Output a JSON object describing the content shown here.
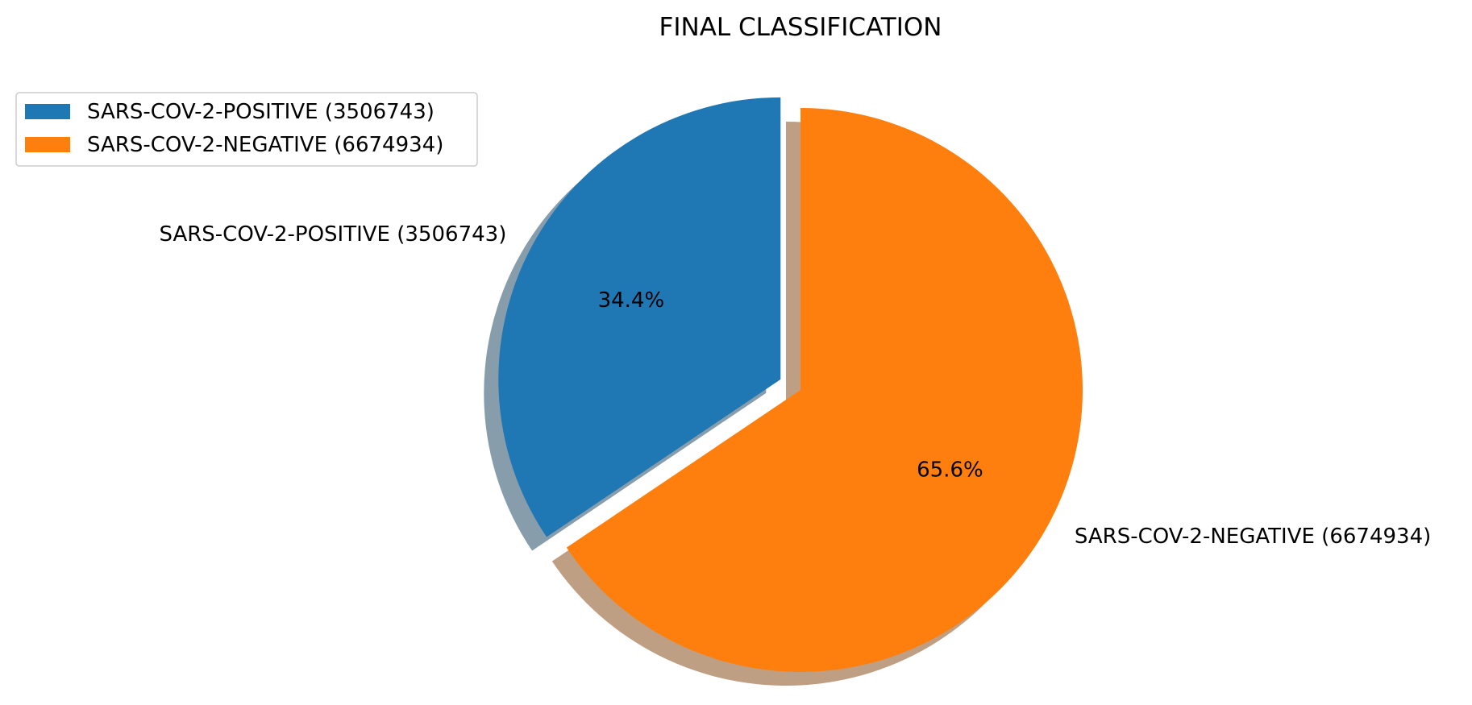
{
  "chart_data": {
    "type": "pie",
    "title": "FINAL CLASSIFICATION",
    "start_angle_deg": 90,
    "counterclockwise": true,
    "shadow": true,
    "slices": [
      {
        "label": "SARS-COV-2-POSITIVE (3506743)",
        "value": 3506743,
        "pct_label": "34.4%",
        "explode": 0.08,
        "color": "#1f77b4"
      },
      {
        "label": "SARS-COV-2-NEGATIVE (6674934)",
        "value": 6674934,
        "pct_label": "65.6%",
        "explode": 0.0,
        "color": "#ff7f0e"
      }
    ],
    "legend": {
      "placement": "upper-left",
      "entries": [
        "SARS-COV-2-POSITIVE (3506743)",
        "SARS-COV-2-NEGATIVE (6674934)"
      ]
    }
  }
}
